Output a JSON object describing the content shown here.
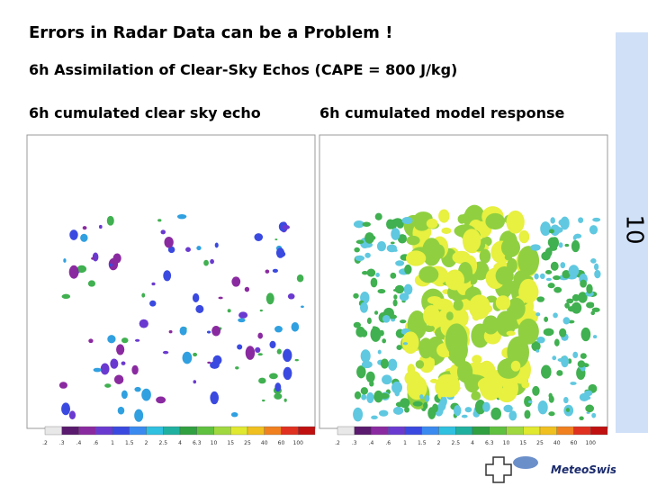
{
  "header": {
    "title": "Errors in Radar Data can be a Problem !",
    "subtitle": "6h Assimilation of Clear-Sky Echos (CAPE = 800 J/kg)",
    "page_number": "10"
  },
  "panels": [
    {
      "label": "6h cumulated clear sky echo"
    },
    {
      "label": "6h cumulated model response"
    }
  ],
  "colorbar_labels": [
    ".2",
    ".3",
    ".4",
    ".6",
    "1",
    "1.5",
    "2",
    "2.5",
    "4",
    "6.3",
    "10",
    "15",
    "25",
    "40",
    "60",
    "100"
  ],
  "logo": "MeteoSwiss"
}
